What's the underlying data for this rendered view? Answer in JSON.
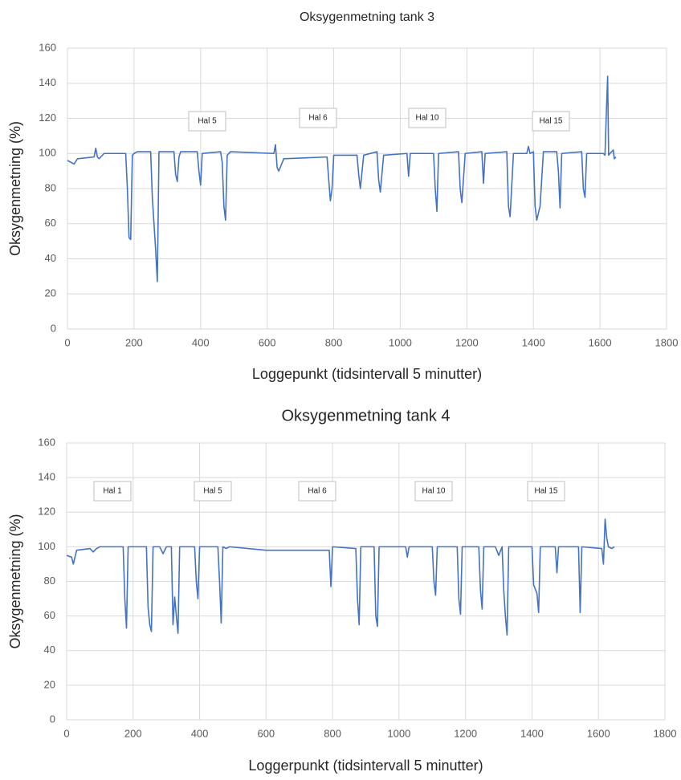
{
  "chart_data": [
    {
      "type": "line",
      "title": "Oksygenmetning tank 3",
      "x_label": "Loggepunkt (tidsintervall 5 minutter)",
      "y_label": "Oksygenmetning (%)",
      "x": [
        0,
        10,
        20,
        30,
        80,
        85,
        90,
        95,
        100,
        110,
        175,
        180,
        185,
        190,
        195,
        200,
        210,
        250,
        255,
        260,
        265,
        270,
        275,
        320,
        325,
        330,
        335,
        340,
        390,
        395,
        400,
        405,
        460,
        465,
        470,
        475,
        480,
        490,
        620,
        625,
        630,
        635,
        650,
        780,
        785,
        790,
        795,
        800,
        870,
        875,
        880,
        890,
        930,
        935,
        940,
        950,
        1020,
        1025,
        1030,
        1100,
        1105,
        1110,
        1115,
        1175,
        1180,
        1185,
        1195,
        1245,
        1250,
        1255,
        1320,
        1325,
        1330,
        1340,
        1380,
        1385,
        1390,
        1400,
        1405,
        1410,
        1420,
        1430,
        1470,
        1475,
        1480,
        1485,
        1545,
        1550,
        1555,
        1560,
        1610,
        1615,
        1620,
        1623,
        1626,
        1630,
        1640,
        1643,
        1648
      ],
      "values": [
        96,
        95,
        94,
        97,
        98,
        103,
        98,
        97,
        98,
        100,
        100,
        80,
        52,
        51,
        99,
        100,
        101,
        101,
        75,
        60,
        45,
        27,
        101,
        101,
        88,
        84,
        98,
        101,
        101,
        90,
        82,
        100,
        101,
        95,
        70,
        62,
        99,
        101,
        100,
        105,
        92,
        90,
        97,
        98,
        85,
        73,
        80,
        99,
        99,
        88,
        80,
        99,
        101,
        85,
        78,
        99,
        100,
        87,
        100,
        100,
        80,
        67,
        100,
        101,
        80,
        72,
        100,
        101,
        83,
        100,
        101,
        70,
        64,
        100,
        100,
        104,
        100,
        101,
        70,
        62,
        70,
        101,
        101,
        90,
        69,
        100,
        101,
        80,
        75,
        100,
        100,
        99,
        128,
        144,
        99,
        100,
        102,
        97,
        98
      ],
      "color": "#4472c4",
      "xlim": [
        0,
        1800
      ],
      "xticks": [
        0,
        200,
        400,
        600,
        800,
        1000,
        1200,
        1400,
        1600,
        1800
      ],
      "ylim": [
        0,
        160
      ],
      "yticks": [
        0,
        20,
        40,
        60,
        80,
        100,
        120,
        140,
        160
      ],
      "grid": true,
      "annotations": [
        "Hal 5",
        "Hal 6",
        "Hal 10",
        "Hal 15"
      ]
    },
    {
      "type": "line",
      "title": "Oksygenmetning tank 4",
      "x_label": "Loggerpunkt (tidsintervall 5 minutter)",
      "y_label": "Oksygenmetning (%)",
      "x": [
        0,
        15,
        20,
        30,
        70,
        80,
        90,
        100,
        170,
        175,
        180,
        185,
        240,
        245,
        250,
        255,
        260,
        280,
        290,
        300,
        315,
        320,
        325,
        330,
        335,
        340,
        385,
        390,
        395,
        400,
        455,
        460,
        465,
        470,
        480,
        490,
        600,
        790,
        795,
        800,
        870,
        875,
        880,
        885,
        925,
        930,
        935,
        940,
        1020,
        1025,
        1030,
        1100,
        1105,
        1110,
        1115,
        1175,
        1180,
        1185,
        1190,
        1240,
        1245,
        1250,
        1255,
        1290,
        1300,
        1310,
        1315,
        1320,
        1325,
        1330,
        1400,
        1405,
        1415,
        1420,
        1425,
        1470,
        1475,
        1480,
        1540,
        1545,
        1550,
        1610,
        1615,
        1620,
        1625,
        1630,
        1640,
        1648
      ],
      "values": [
        95,
        94,
        90,
        98,
        99,
        97,
        99,
        100,
        100,
        70,
        53,
        100,
        100,
        65,
        55,
        51,
        100,
        100,
        96,
        100,
        100,
        55,
        71,
        60,
        50,
        100,
        100,
        80,
        70,
        100,
        100,
        80,
        56,
        100,
        99,
        100,
        98,
        98,
        77,
        100,
        99,
        70,
        55,
        100,
        100,
        60,
        54,
        100,
        100,
        94,
        100,
        100,
        80,
        72,
        100,
        100,
        70,
        61,
        100,
        100,
        75,
        64,
        100,
        100,
        95,
        100,
        75,
        60,
        49,
        100,
        100,
        78,
        73,
        62,
        100,
        100,
        85,
        100,
        100,
        62,
        100,
        99,
        90,
        116,
        105,
        100,
        99,
        100
      ],
      "color": "#4472c4",
      "xlim": [
        0,
        1800
      ],
      "xticks": [
        0,
        200,
        400,
        600,
        800,
        1000,
        1200,
        1400,
        1600,
        1800
      ],
      "ylim": [
        0,
        160
      ],
      "yticks": [
        0,
        20,
        40,
        60,
        80,
        100,
        120,
        140,
        160
      ],
      "grid": true,
      "annotations": [
        "Hal 1",
        "Hal 5",
        "Hal 6",
        "Hal 10",
        "Hal 15"
      ]
    }
  ]
}
